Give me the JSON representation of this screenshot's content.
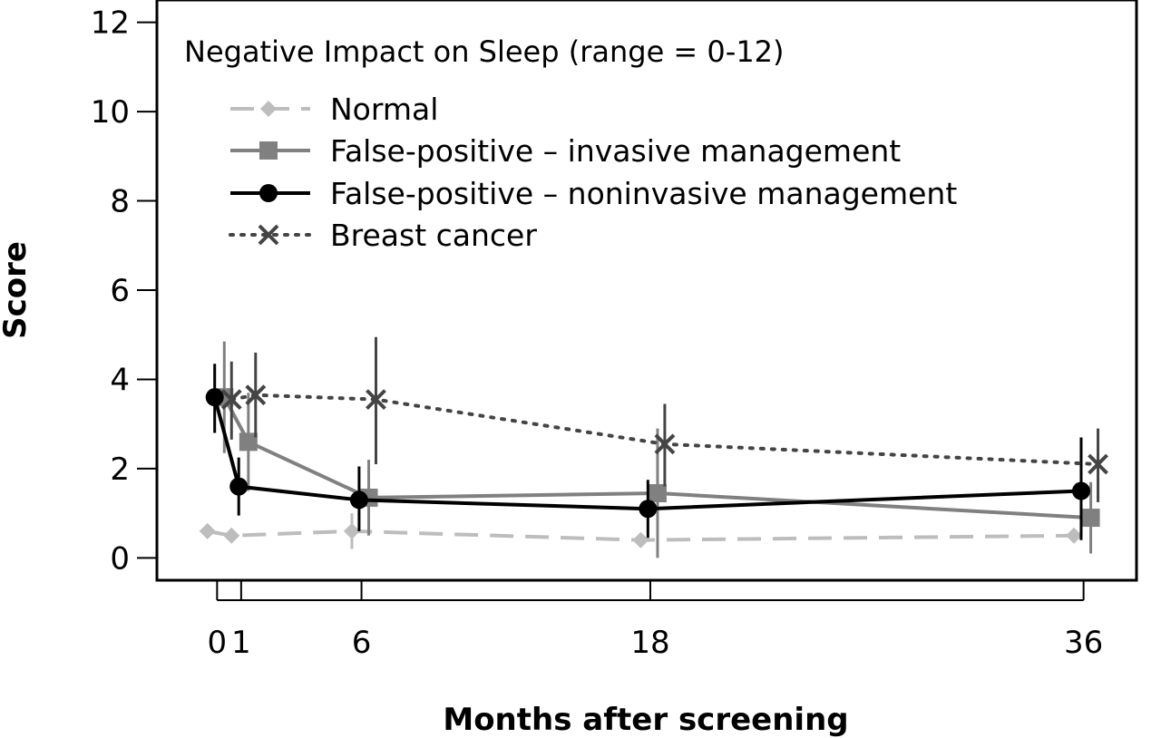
{
  "chart_data": {
    "type": "line",
    "title": "Negative Impact on Sleep (range = 0-12)",
    "xlabel": "Months after screening",
    "ylabel": "Score",
    "xlim": [
      -2.5,
      38.2
    ],
    "ylim": [
      -0.5,
      12.5
    ],
    "x_ticks": [
      0,
      1,
      6,
      18,
      36
    ],
    "y_ticks": [
      0,
      2,
      4,
      6,
      8,
      10,
      12
    ],
    "grid": false,
    "legend_position": "top-left",
    "series": [
      {
        "name": "Normal",
        "color": "#bdbdbd",
        "line_style": "dashed",
        "marker": "diamond",
        "x_offset": -0.4,
        "x": [
          0,
          1,
          6,
          18,
          36
        ],
        "values": [
          0.6,
          0.5,
          0.6,
          0.4,
          0.5
        ],
        "ci_low": [
          0.5,
          0.4,
          0.2,
          0.3,
          0.4
        ],
        "ci_high": [
          0.7,
          0.6,
          1.0,
          0.5,
          0.6
        ]
      },
      {
        "name": "False-positive – invasive management",
        "color": "#808080",
        "line_style": "solid",
        "marker": "square",
        "x_offset": 0.3,
        "x": [
          0,
          1,
          6,
          18,
          36
        ],
        "values": [
          3.6,
          2.6,
          1.35,
          1.45,
          0.9
        ],
        "ci_low": [
          2.35,
          1.5,
          0.5,
          0.0,
          0.1
        ],
        "ci_high": [
          4.85,
          3.7,
          2.2,
          2.9,
          1.7
        ]
      },
      {
        "name": "False-positive – noninvasive management",
        "color": "#000000",
        "line_style": "solid",
        "marker": "circle",
        "x_offset": -0.1,
        "x": [
          0,
          1,
          6,
          18,
          36
        ],
        "values": [
          3.6,
          1.6,
          1.3,
          1.1,
          1.5
        ],
        "ci_low": [
          2.8,
          0.95,
          0.6,
          0.45,
          0.4
        ],
        "ci_high": [
          4.35,
          2.25,
          2.05,
          1.75,
          2.7
        ]
      },
      {
        "name": "Breast cancer",
        "color": "#444444",
        "line_style": "dotted",
        "marker": "x",
        "x_offset": 0.6,
        "x": [
          0,
          1,
          6,
          18,
          36
        ],
        "values": [
          3.55,
          3.65,
          3.55,
          2.55,
          2.1
        ],
        "ci_low": [
          2.65,
          2.7,
          2.1,
          1.6,
          1.25
        ],
        "ci_high": [
          4.4,
          4.6,
          4.95,
          3.45,
          2.9
        ]
      }
    ]
  }
}
